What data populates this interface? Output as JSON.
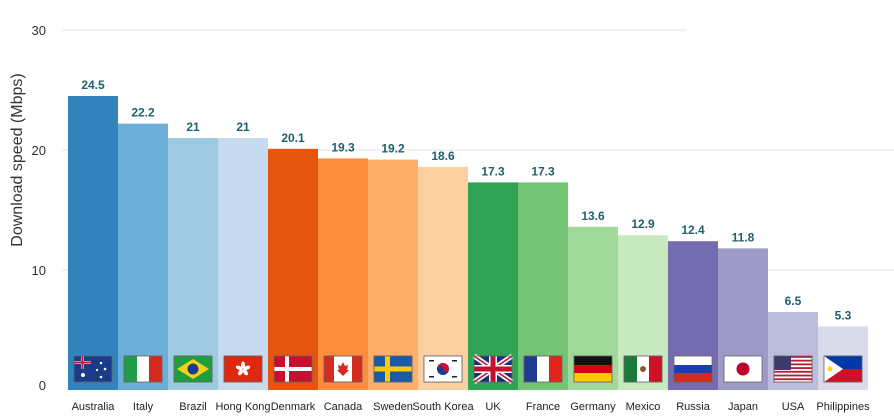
{
  "chart_data": {
    "type": "bar",
    "title": "",
    "xlabel": "",
    "ylabel": "Download speed (Mbps)",
    "ylim": [
      0,
      30
    ],
    "yticks": [
      0,
      10,
      20,
      30
    ],
    "grid": true,
    "categories": [
      "Australia",
      "Italy",
      "Brazil",
      "Hong Kong",
      "Denmark",
      "Canada",
      "Sweden",
      "South Korea",
      "UK",
      "France",
      "Germany",
      "Mexico",
      "Russia",
      "Japan",
      "USA",
      "Philippines"
    ],
    "values": [
      24.5,
      22.2,
      21,
      21,
      20.1,
      19.3,
      19.2,
      18.6,
      17.3,
      17.3,
      13.6,
      12.9,
      12.4,
      11.8,
      6.5,
      5.3
    ],
    "value_labels": [
      "24.5",
      "22.2",
      "21",
      "21",
      "20.1",
      "19.3",
      "19.2",
      "18.6",
      "17.3",
      "17.3",
      "13.6",
      "12.9",
      "12.4",
      "11.8",
      "6.5",
      "5.3"
    ],
    "colors": [
      "#3182bd",
      "#6baed6",
      "#9ecae1",
      "#c6dbef",
      "#e6550d",
      "#fd8d3c",
      "#fdae6b",
      "#fdd0a2",
      "#31a354",
      "#74c476",
      "#a1d99b",
      "#c7e9c0",
      "#756bb1",
      "#9e9ac8",
      "#bcbddc",
      "#dadaeb"
    ],
    "flag_icons": [
      "australia-flag-icon",
      "italy-flag-icon",
      "brazil-flag-icon",
      "hong-kong-flag-icon",
      "denmark-flag-icon",
      "canada-flag-icon",
      "sweden-flag-icon",
      "south-korea-flag-icon",
      "uk-flag-icon",
      "france-flag-icon",
      "germany-flag-icon",
      "mexico-flag-icon",
      "russia-flag-icon",
      "japan-flag-icon",
      "usa-flag-icon",
      "philippines-flag-icon"
    ]
  }
}
